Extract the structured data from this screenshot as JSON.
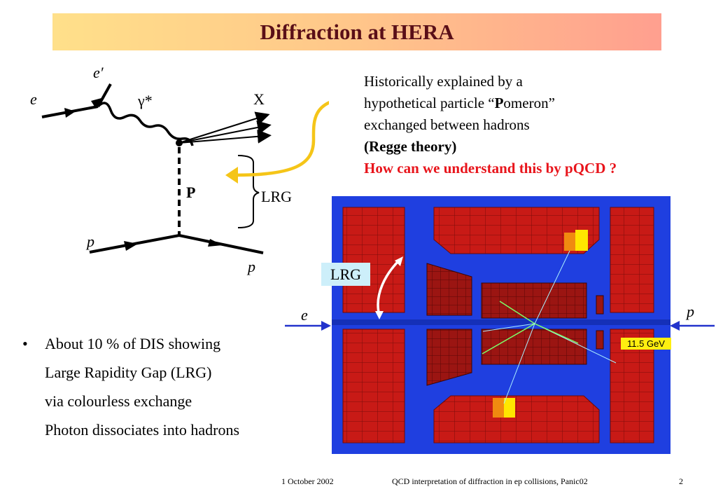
{
  "slide": {
    "title": "Diffraction at HERA"
  },
  "diagram": {
    "labels": {
      "e_in": "e",
      "e_out": "e′",
      "photon": "γ*",
      "x": "X",
      "pomeron": "P",
      "lrg": "LRG",
      "p_in": "p",
      "p_out": "p"
    },
    "colors": {
      "arrow": "#f5c518",
      "line": "#000000"
    }
  },
  "explanation": {
    "line1": "Historically explained by a",
    "line2_pre": "hypothetical particle “",
    "line2_bold": "P",
    "line2_post": "omeron”",
    "line3": "exchanged between hadrons",
    "line4": "(Regge theory)",
    "line5": "How can we understand this by pQCD ?"
  },
  "bullets": {
    "marker": "•",
    "items": [
      "About 10 % of DIS showing",
      "Large Rapidity Gap (LRG)",
      "via colourless exchange",
      "Photon dissociates into hadrons"
    ]
  },
  "event_display": {
    "lrg_label": "LRG",
    "e_label": "e",
    "p_label": "p",
    "energy_label": "11.5 GeV",
    "colors": {
      "background": "#1f3fe0",
      "calorimeter": "#c81a16",
      "hit": "#ffe600",
      "label_box": "#cdeffa"
    }
  },
  "footer": {
    "date": "1 October 2002",
    "talk": "QCD interpretation of diffraction in ep collisions, Panic02",
    "page": "2"
  }
}
